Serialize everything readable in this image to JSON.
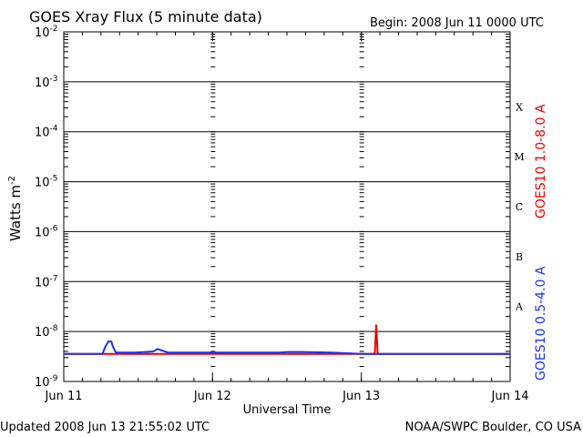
{
  "chart_data": {
    "type": "line",
    "title": "GOES Xray Flux (5 minute data)",
    "begin_label": "Begin:  2008 Jun 11 0000 UTC",
    "xlabel": "Universal Time",
    "ylabel": "Watts m",
    "ylabel_sup": "-2",
    "x_ticks": [
      {
        "label": "Jun 11",
        "x": 0
      },
      {
        "label": "Jun 12",
        "x": 1
      },
      {
        "label": "Jun 13",
        "x": 2
      },
      {
        "label": "Jun 14",
        "x": 3
      }
    ],
    "xlim": [
      0,
      3
    ],
    "ylim_exp": [
      -9,
      -2
    ],
    "y_scale": "log",
    "y_ticks": [
      {
        "base": "10",
        "exp": "-2",
        "value": -2
      },
      {
        "base": "10",
        "exp": "-3",
        "value": -3
      },
      {
        "base": "10",
        "exp": "-4",
        "value": -4
      },
      {
        "base": "10",
        "exp": "-5",
        "value": -5
      },
      {
        "base": "10",
        "exp": "-6",
        "value": -6
      },
      {
        "base": "10",
        "exp": "-7",
        "value": -7
      },
      {
        "base": "10",
        "exp": "-8",
        "value": -8
      },
      {
        "base": "10",
        "exp": "-9",
        "value": -9
      }
    ],
    "flare_classes": [
      {
        "label": "X",
        "exp": -3.5
      },
      {
        "label": "M",
        "exp": -4.5
      },
      {
        "label": "C",
        "exp": -5.5
      },
      {
        "label": "B",
        "exp": -6.5
      },
      {
        "label": "A",
        "exp": -7.5
      }
    ],
    "series": [
      {
        "name": "GOES10 1.0-8.0 A",
        "color": "#ee0000",
        "points": [
          [
            0,
            -8.45
          ],
          [
            2.09,
            -8.45
          ],
          [
            2.1,
            -7.86
          ],
          [
            2.11,
            -8.45
          ],
          [
            3,
            -8.45
          ]
        ]
      },
      {
        "name": "GOES10 0.5-4.0 A",
        "color": "#1a33ee",
        "points": [
          [
            0,
            -8.45
          ],
          [
            0.26,
            -8.45
          ],
          [
            0.28,
            -8.3
          ],
          [
            0.3,
            -8.2
          ],
          [
            0.32,
            -8.2
          ],
          [
            0.33,
            -8.3
          ],
          [
            0.35,
            -8.42
          ],
          [
            0.48,
            -8.42
          ],
          [
            0.6,
            -8.4
          ],
          [
            0.63,
            -8.35
          ],
          [
            0.66,
            -8.38
          ],
          [
            0.7,
            -8.42
          ],
          [
            1,
            -8.42
          ],
          [
            1.45,
            -8.42
          ],
          [
            1.5,
            -8.41
          ],
          [
            1.6,
            -8.41
          ],
          [
            1.8,
            -8.42
          ],
          [
            2,
            -8.45
          ],
          [
            3,
            -8.45
          ]
        ]
      }
    ],
    "grid": true
  },
  "footer": {
    "updated": "Updated 2008 Jun 13 21:55:02 UTC",
    "credit": "NOAA/SWPC Boulder, CO USA"
  }
}
